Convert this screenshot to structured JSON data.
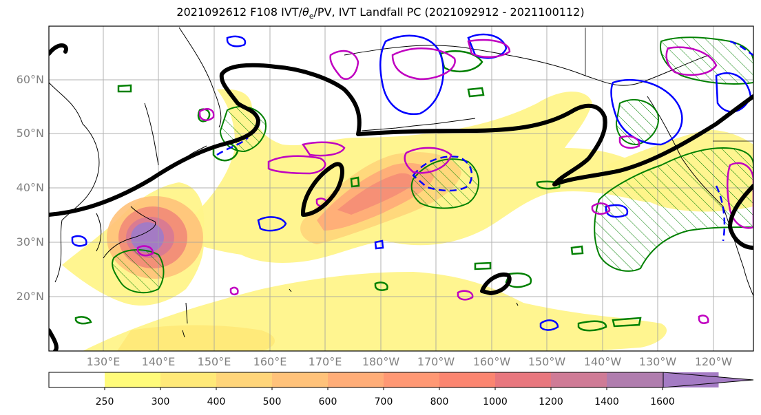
{
  "title_main": "2021092612 F108 IVT/",
  "title_theta": "θ",
  "title_sub": "e",
  "title_rest": "/PV, IVT Landfall PC (2021092912 - 2021100112)",
  "lat_labels": [
    "60°N",
    "50°N",
    "40°N",
    "30°N",
    "20°N"
  ],
  "lon_labels": [
    "130°E",
    "140°E",
    "150°E",
    "160°E",
    "170°E",
    "180°W",
    "170°W",
    "160°W",
    "150°W",
    "140°W",
    "130°W",
    "120°W"
  ],
  "colorbar": {
    "labels": [
      "250",
      "300",
      "400",
      "500",
      "600",
      "700",
      "800",
      "1000",
      "1200",
      "1400",
      "1600"
    ],
    "colors": [
      "#ffffff",
      "#fffb7a",
      "#ffe978",
      "#ffd57a",
      "#ffc27a",
      "#ffad78",
      "#ff9874",
      "#fb8570",
      "#e8777e",
      "#cf7b96",
      "#b07dae",
      "#a47bc4"
    ]
  },
  "colors": {
    "ivt_low": "#fff36e",
    "ivt_mid": "#ffb870",
    "ivt_high": "#f57f79",
    "ivt_peak": "#9f7ac6",
    "pv_contour": "#000000",
    "theta_positive": "#0000ff",
    "theta_negative": "#008000",
    "pc_contour": "#c000c0",
    "grid": "#a0a0a0",
    "coast": "#000000"
  }
}
